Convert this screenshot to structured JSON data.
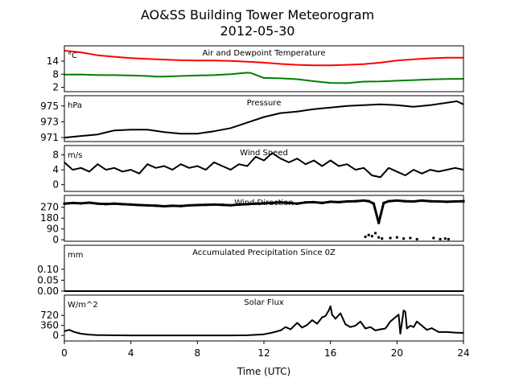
{
  "figure": {
    "title_line1": "AO&SS Building Tower Meteorogram",
    "title_line2": "2012-05-30",
    "xlabel": "Time (UTC)"
  },
  "chart_data": [
    {
      "type": "line",
      "title": "Air and Dewpoint Temperature",
      "unit": "°C",
      "xlim": [
        0,
        24
      ],
      "ylim": [
        0,
        21
      ],
      "yticks": [
        2,
        8,
        14
      ],
      "series": [
        {
          "color": "#ff0000",
          "x": [
            0,
            1,
            2,
            3,
            4,
            5,
            6,
            7,
            8,
            9,
            10,
            11,
            12,
            13,
            14,
            15,
            16,
            17,
            18,
            19,
            20,
            21,
            22,
            23,
            24
          ],
          "y": [
            18.8,
            18.0,
            16.7,
            16.0,
            15.4,
            15.0,
            14.7,
            14.4,
            14.3,
            14.3,
            14.1,
            13.7,
            13.3,
            12.7,
            12.3,
            12.1,
            12.1,
            12.3,
            12.6,
            13.3,
            14.3,
            14.8,
            15.3,
            15.6,
            15.6
          ]
        },
        {
          "color": "#008000",
          "x": [
            0,
            1,
            2,
            3,
            4,
            5,
            5.5,
            6,
            7,
            8,
            9,
            10,
            11,
            11.2,
            12,
            13,
            14,
            15,
            16,
            17,
            18,
            19,
            20,
            21,
            22,
            23,
            24
          ],
          "y": [
            7.8,
            7.9,
            7.6,
            7.6,
            7.4,
            7.2,
            6.9,
            6.9,
            7.2,
            7.4,
            7.6,
            8.0,
            8.7,
            8.6,
            6.3,
            6.1,
            5.7,
            4.8,
            4.0,
            3.9,
            4.6,
            4.7,
            5.0,
            5.3,
            5.6,
            5.8,
            5.9
          ]
        }
      ]
    },
    {
      "type": "line",
      "title": "Pressure",
      "unit": "hPa",
      "xlim": [
        0,
        24
      ],
      "ylim": [
        970.5,
        976.3
      ],
      "yticks": [
        971,
        973,
        975
      ],
      "series": [
        {
          "color": "#000000",
          "x": [
            0,
            1,
            2,
            3,
            4,
            5,
            6,
            7,
            8,
            9,
            10,
            11,
            12,
            13,
            14,
            15,
            16,
            17,
            18,
            19,
            20,
            21,
            22,
            23,
            23.6,
            24
          ],
          "y": [
            971.0,
            971.2,
            971.4,
            971.9,
            972.0,
            972.0,
            971.7,
            971.5,
            971.5,
            971.8,
            972.2,
            972.9,
            973.6,
            974.1,
            974.3,
            974.6,
            974.8,
            975.0,
            975.1,
            975.2,
            975.1,
            974.9,
            975.1,
            975.4,
            975.6,
            975.2
          ]
        }
      ]
    },
    {
      "type": "line",
      "title": "Wind Speed",
      "unit": "m/s",
      "xlim": [
        0,
        24
      ],
      "ylim": [
        -1.8,
        10.5
      ],
      "yticks": [
        0,
        4,
        8
      ],
      "series": [
        {
          "color": "#000000",
          "x": [
            0,
            0.5,
            1,
            1.5,
            2,
            2.5,
            3,
            3.5,
            4,
            4.5,
            5,
            5.5,
            6,
            6.5,
            7,
            7.5,
            8,
            8.5,
            9,
            9.5,
            10,
            10.5,
            11,
            11.5,
            12,
            12.5,
            13,
            13.5,
            14,
            14.5,
            15,
            15.5,
            16,
            16.5,
            17,
            17.5,
            18,
            18.5,
            19,
            19.5,
            20,
            20.5,
            21,
            21.5,
            22,
            22.5,
            23,
            23.5,
            24
          ],
          "y": [
            6.0,
            4.0,
            4.5,
            3.5,
            5.5,
            4.0,
            4.5,
            3.5,
            4.0,
            3.0,
            5.5,
            4.5,
            5.0,
            4.0,
            5.5,
            4.5,
            5.0,
            4.0,
            6.0,
            5.0,
            4.0,
            5.5,
            5.0,
            7.5,
            6.5,
            8.5,
            7.0,
            6.0,
            7.0,
            5.5,
            6.5,
            5.0,
            6.5,
            5.0,
            5.5,
            4.0,
            4.5,
            2.5,
            2.0,
            4.5,
            3.5,
            2.5,
            4.0,
            3.0,
            4.0,
            3.5,
            4.0,
            4.5,
            4.0
          ]
        }
      ]
    },
    {
      "type": "scatter",
      "title": "Wind Direction",
      "unit": "",
      "xlim": [
        0,
        24
      ],
      "ylim": [
        -12,
        368
      ],
      "yticks": [
        0,
        90,
        180,
        270
      ],
      "series": [
        {
          "color": "#000000",
          "x": [
            0,
            0.5,
            1,
            1.5,
            2,
            2.5,
            3,
            3.5,
            4,
            4.5,
            5,
            5.5,
            6,
            6.5,
            7,
            7.5,
            8,
            8.5,
            9,
            9.5,
            10,
            10.5,
            11,
            11.5,
            12,
            12.5,
            13,
            13.5,
            14,
            14.5,
            15,
            15.5,
            16,
            16.5,
            17,
            17.5,
            18,
            18.3,
            18.6,
            18.9,
            19.2,
            19.5,
            20,
            20.5,
            21,
            21.5,
            22,
            22.5,
            23,
            23.5,
            24
          ],
          "y": [
            300,
            305,
            302,
            308,
            300,
            296,
            300,
            295,
            292,
            288,
            285,
            283,
            278,
            282,
            280,
            285,
            288,
            290,
            292,
            290,
            286,
            292,
            295,
            300,
            302,
            305,
            310,
            305,
            300,
            310,
            312,
            305,
            315,
            312,
            318,
            320,
            325,
            320,
            300,
            140,
            305,
            320,
            325,
            320,
            318,
            325,
            320,
            318,
            315,
            318,
            320
          ]
        },
        {
          "color": "#000000",
          "x": [
            18.1,
            18.3,
            18.5,
            18.7,
            18.9,
            19.1,
            19.6,
            20.0,
            20.4,
            20.8,
            21.2,
            22.2,
            22.6,
            22.9,
            23.1
          ],
          "y": [
            25,
            40,
            30,
            55,
            20,
            10,
            15,
            20,
            10,
            15,
            5,
            15,
            5,
            10,
            5
          ]
        }
      ]
    },
    {
      "type": "line",
      "title": "Accumulated Precipitation Since 0Z",
      "unit": "mm",
      "xlim": [
        0,
        24
      ],
      "ylim": [
        0,
        0.21
      ],
      "yticks": [
        "0.00",
        "0.05",
        "0.10"
      ],
      "series": [
        {
          "color": "#000000",
          "x": [
            0,
            24
          ],
          "y": [
            0,
            0
          ]
        }
      ]
    },
    {
      "type": "line",
      "title": "Solar Flux",
      "unit": "W/m^2",
      "xlim": [
        0,
        24
      ],
      "ylim": [
        -200,
        1450
      ],
      "yticks": [
        0,
        360,
        720
      ],
      "xticks": [
        0,
        4,
        8,
        12,
        16,
        20,
        24
      ],
      "series": [
        {
          "color": "#000000",
          "x": [
            0,
            0.3,
            0.6,
            1,
            1.5,
            2,
            4,
            6,
            8,
            10,
            11,
            12,
            12.5,
            13,
            13.3,
            13.6,
            14,
            14.3,
            14.6,
            14.9,
            15.2,
            15.5,
            15.7,
            15.9,
            16.0,
            16.1,
            16.3,
            16.6,
            16.9,
            17.2,
            17.5,
            17.8,
            18.1,
            18.4,
            18.7,
            19.0,
            19.3,
            19.6,
            20.0,
            20.1,
            20.2,
            20.4,
            20.5,
            20.6,
            20.8,
            21.0,
            21.2,
            21.5,
            21.8,
            22.1,
            22.5,
            23,
            23.5,
            24
          ],
          "y": [
            150,
            200,
            120,
            60,
            30,
            10,
            0,
            0,
            0,
            0,
            5,
            40,
            100,
            180,
            300,
            220,
            450,
            280,
            380,
            550,
            420,
            650,
            700,
            900,
            1050,
            750,
            600,
            800,
            400,
            300,
            350,
            500,
            250,
            300,
            180,
            220,
            250,
            500,
            700,
            750,
            60,
            900,
            850,
            250,
            350,
            300,
            500,
            350,
            200,
            260,
            120,
            120,
            100,
            90
          ]
        }
      ]
    }
  ]
}
